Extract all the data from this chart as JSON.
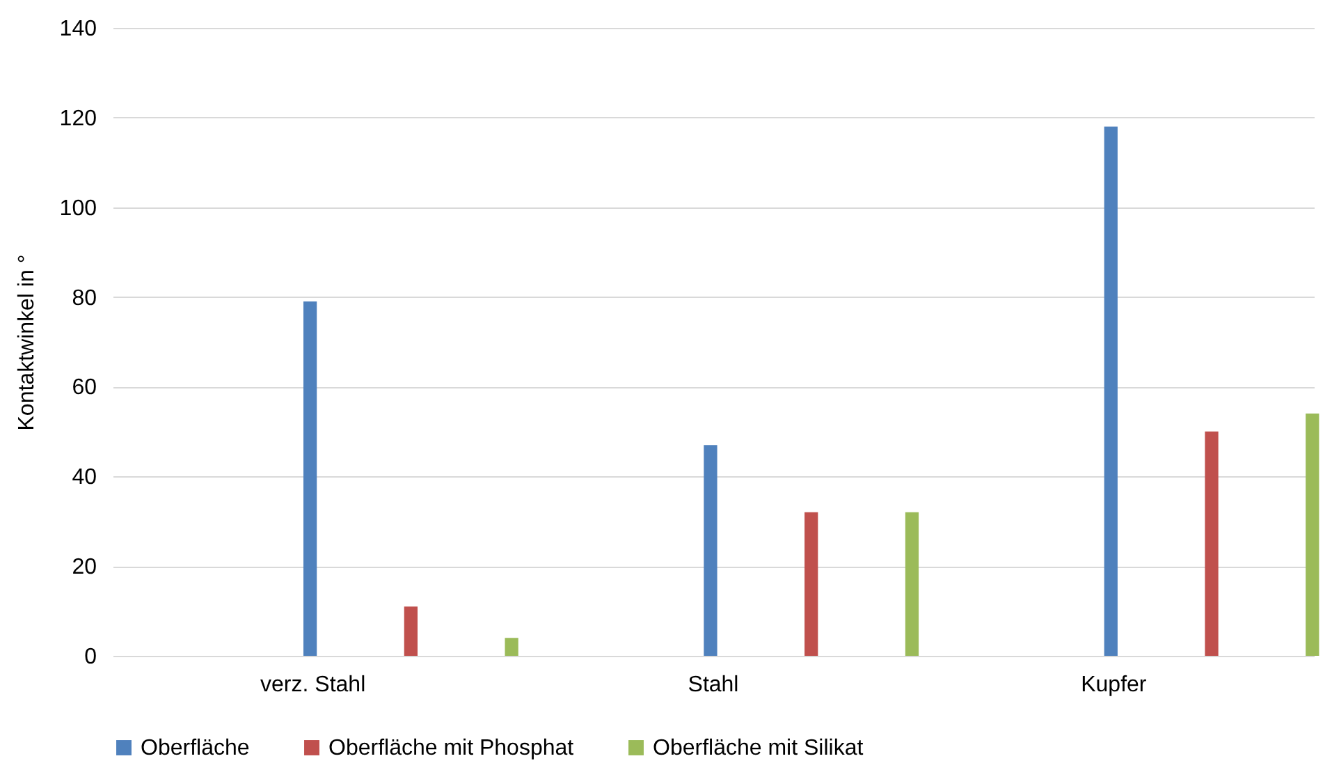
{
  "chart_data": {
    "type": "bar",
    "ylabel": "Kontaktwinkel in °",
    "categories": [
      "verz. Stahl",
      "Stahl",
      "Kupfer"
    ],
    "series": [
      {
        "name": "Oberfläche",
        "color": "#4f81bd",
        "values": [
          79,
          47,
          118
        ]
      },
      {
        "name": "Oberfläche mit Phosphat",
        "color": "#c0504d",
        "values": [
          11,
          32,
          50
        ]
      },
      {
        "name": "Oberfläche mit Silikat",
        "color": "#9bbb59",
        "values": [
          4,
          32,
          54
        ]
      }
    ],
    "ylim": [
      0,
      140
    ],
    "yticks": [
      0,
      20,
      40,
      60,
      80,
      100,
      120,
      140
    ],
    "grid": "y",
    "legend": "bottom"
  }
}
